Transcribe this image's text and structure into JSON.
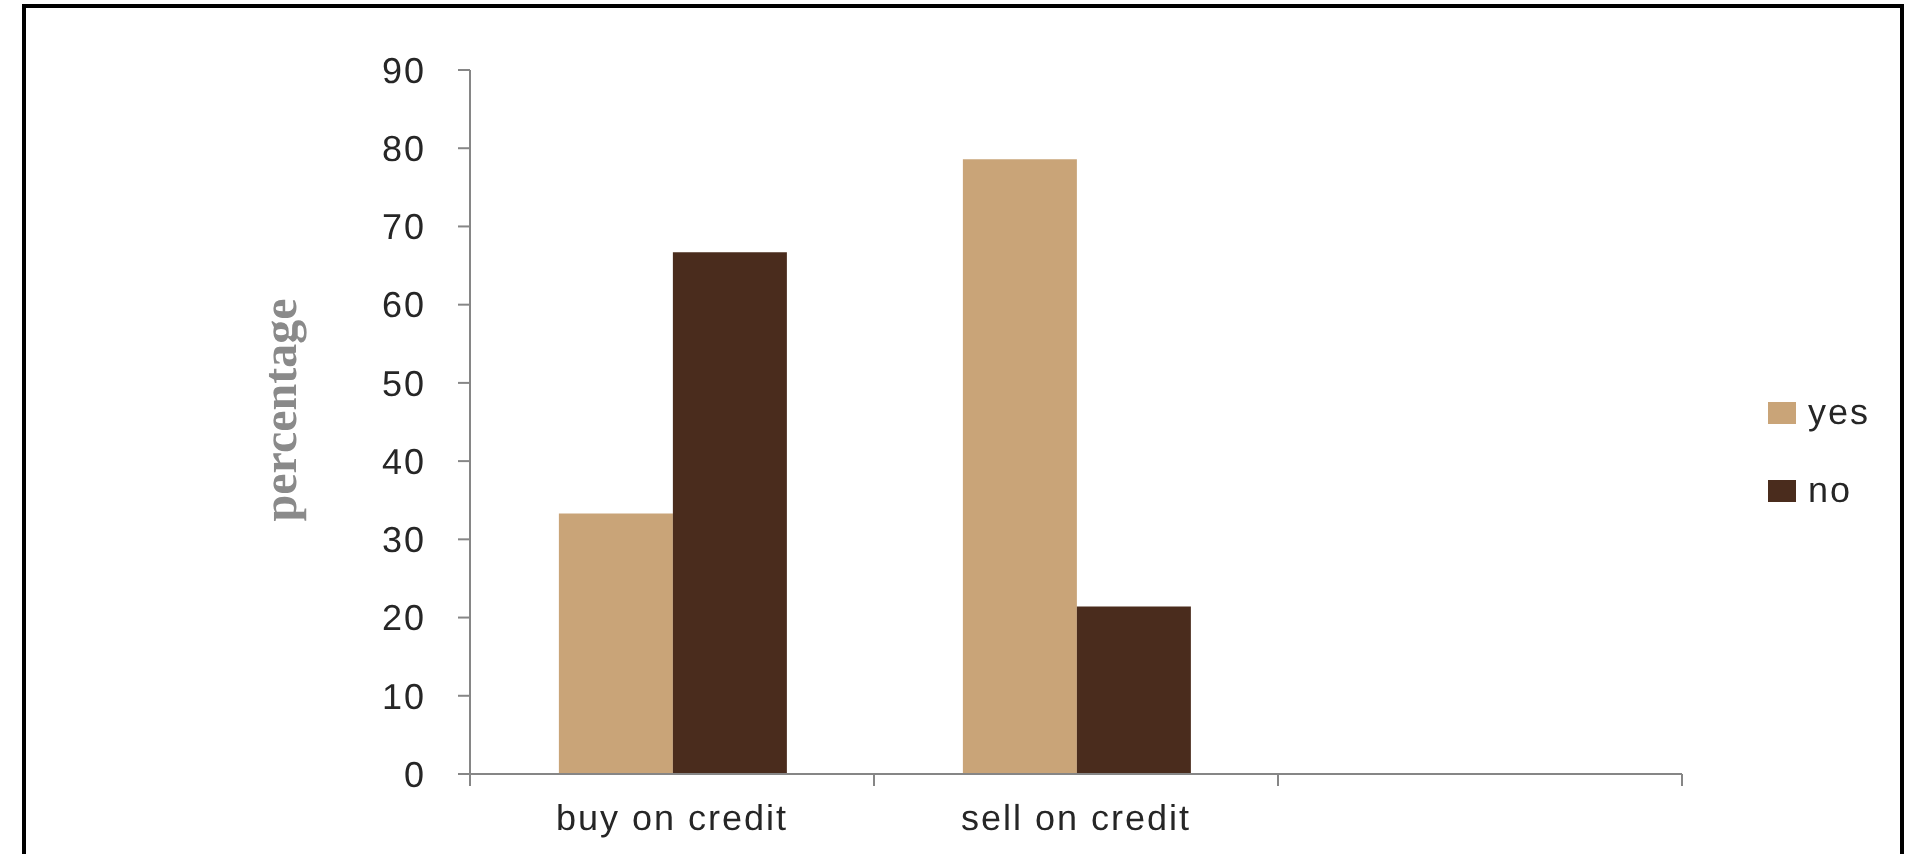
{
  "chart_data": {
    "type": "bar",
    "ylabel": "percentage",
    "categories": [
      "buy on credit",
      "sell on credit",
      null
    ],
    "series": [
      {
        "name": "yes",
        "color": "#c9a478",
        "values": [
          33.3,
          78.6,
          null
        ]
      },
      {
        "name": "no",
        "color": "#4a2c1d",
        "values": [
          66.7,
          21.4,
          null
        ]
      }
    ],
    "ylim": [
      0,
      90
    ],
    "yticks": [
      0,
      10,
      20,
      30,
      40,
      50,
      60,
      70,
      80,
      90
    ],
    "legend": "right"
  }
}
